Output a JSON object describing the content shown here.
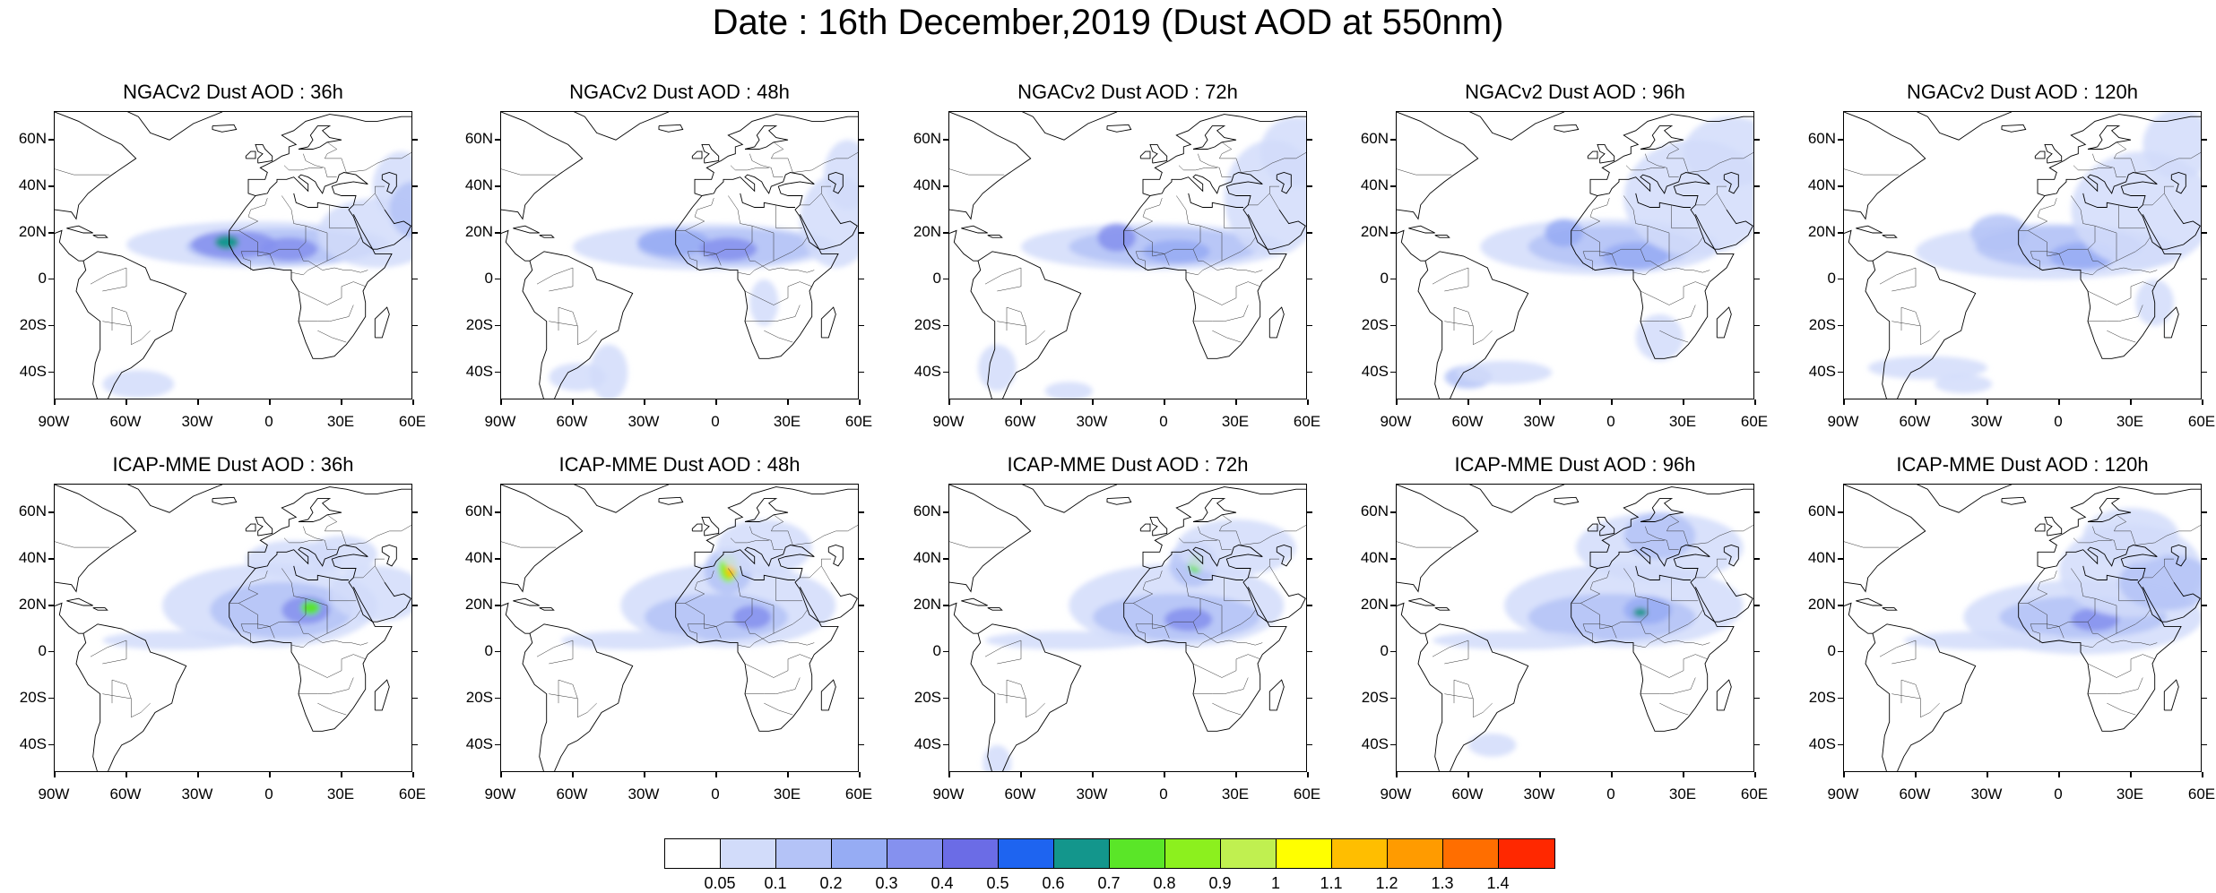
{
  "title": "Date : 16th December,2019 (Dust AOD at 550nm)",
  "y_labels": [
    "60N",
    "40N",
    "20N",
    "0",
    "20S",
    "40S"
  ],
  "x_labels": [
    "90W",
    "60W",
    "30W",
    "0",
    "30E",
    "60E"
  ],
  "panels": [
    {
      "title": "NGACv2 Dust AOD : 36h"
    },
    {
      "title": "NGACv2 Dust AOD : 48h"
    },
    {
      "title": "NGACv2 Dust AOD : 72h"
    },
    {
      "title": "NGACv2 Dust AOD : 96h"
    },
    {
      "title": "NGACv2 Dust AOD : 120h"
    },
    {
      "title": "ICAP-MME Dust AOD : 36h"
    },
    {
      "title": "ICAP-MME Dust AOD : 48h"
    },
    {
      "title": "ICAP-MME Dust AOD : 72h"
    },
    {
      "title": "ICAP-MME Dust AOD : 96h"
    },
    {
      "title": "ICAP-MME Dust AOD : 120h"
    }
  ],
  "colorbar": {
    "labels": [
      "0.05",
      "0.1",
      "0.2",
      "0.3",
      "0.4",
      "0.5",
      "0.6",
      "0.7",
      "0.8",
      "0.9",
      "1",
      "1.1",
      "1.2",
      "1.3",
      "1.4"
    ],
    "colors": [
      "#ffffff",
      "#d2dcfa",
      "#b4c3f7",
      "#96acf4",
      "#8591ef",
      "#6b6ce6",
      "#1e64f0",
      "#13968c",
      "#5ae628",
      "#8cf01e",
      "#c0f050",
      "#ffff00",
      "#ffbe00",
      "#ff9b00",
      "#ff6e00",
      "#ff2800"
    ]
  }
}
